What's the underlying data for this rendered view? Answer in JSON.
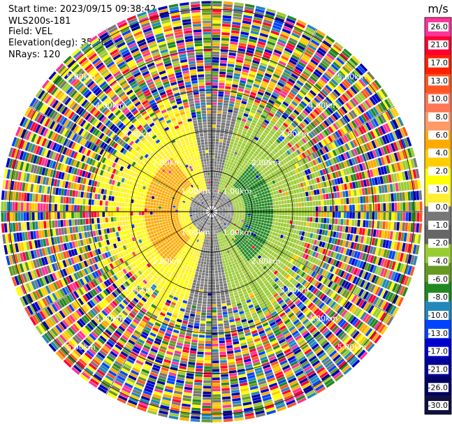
{
  "header": {
    "start_time": "Start time: 2023/09/15 09:38:42",
    "site": "WLS200s-181",
    "field": "Field: VEL",
    "elevation": "Elevation(deg): 35.30",
    "nrays": "NRays: 120"
  },
  "colorbar": {
    "unit": "m/s",
    "ticks": [
      "26.0",
      "21.0",
      "17.0",
      "13.0",
      "10.0",
      "8.0",
      "6.0",
      "4.0",
      "2.0",
      "1.0",
      "0.0",
      "-1.0",
      "-2.0",
      "-4.0",
      "-6.0",
      "-8.0",
      "-10.0",
      "-13.0",
      "-17.0",
      "-21.0",
      "-26.0",
      "-30.0"
    ],
    "colors": [
      "#ff3399",
      "#ff0033",
      "#ff2200",
      "#ff5522",
      "#ff7755",
      "#ff9966",
      "#ffaa00",
      "#ffcc00",
      "#ffff00",
      "#ffee33",
      "#777777",
      "#666666",
      "#99cc33",
      "#669922",
      "#228822",
      "#2288bb",
      "#0044ff",
      "#0000cc",
      "#000099",
      "#000066",
      "#101040"
    ]
  },
  "range_rings": {
    "labels": [
      "1.00km",
      "2.00km",
      "3.00km",
      "4.00km",
      "5.00km"
    ]
  }
}
